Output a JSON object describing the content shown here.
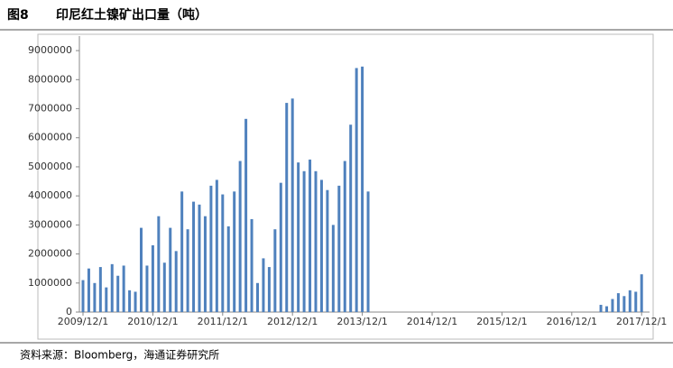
{
  "chart_data": {
    "type": "bar",
    "figure_label": "图8",
    "title": "印尼红土镍矿出口量（吨）",
    "source": "资料来源：Bloomberg，海通证券研究所",
    "categories": [
      "2009/12/1",
      null,
      null,
      null,
      null,
      null,
      null,
      null,
      null,
      null,
      null,
      null,
      "2010/12/1",
      null,
      null,
      null,
      null,
      null,
      null,
      null,
      null,
      null,
      null,
      null,
      "2011/12/1",
      null,
      null,
      null,
      null,
      null,
      null,
      null,
      null,
      null,
      null,
      null,
      "2012/12/1",
      null,
      null,
      null,
      null,
      null,
      null,
      null,
      null,
      null,
      null,
      null,
      "2013/12/1",
      null,
      null,
      null,
      null,
      null,
      null,
      null,
      null,
      null,
      null,
      null,
      "2014/12/1",
      null,
      null,
      null,
      null,
      null,
      null,
      null,
      null,
      null,
      null,
      null,
      "2015/12/1",
      null,
      null,
      null,
      null,
      null,
      null,
      null,
      null,
      null,
      null,
      null,
      "2016/12/1",
      null,
      null,
      null,
      null,
      null,
      null,
      null,
      null,
      null,
      null,
      null,
      "2017/12/1"
    ],
    "values": [
      1100000,
      1500000,
      1000000,
      1550000,
      850000,
      1650000,
      1250000,
      1600000,
      750000,
      700000,
      2900000,
      1600000,
      2300000,
      3300000,
      1700000,
      2900000,
      2100000,
      4150000,
      2850000,
      3800000,
      3700000,
      3300000,
      4350000,
      4550000,
      4050000,
      2950000,
      4150000,
      5200000,
      6650000,
      3200000,
      1000000,
      1850000,
      1550000,
      2850000,
      4450000,
      7200000,
      7350000,
      5150000,
      4850000,
      5250000,
      4850000,
      4550000,
      4200000,
      3000000,
      4350000,
      5200000,
      6450000,
      8400000,
      8450000,
      4150000,
      0,
      0,
      0,
      0,
      0,
      0,
      0,
      0,
      0,
      0,
      0,
      0,
      0,
      0,
      0,
      0,
      0,
      0,
      0,
      0,
      0,
      0,
      0,
      0,
      0,
      0,
      0,
      0,
      0,
      0,
      0,
      0,
      0,
      0,
      0,
      0,
      0,
      0,
      0,
      250000,
      200000,
      450000,
      650000,
      550000,
      750000,
      700000,
      1300000
    ],
    "color": "#4f81bd",
    "ylim": [
      0,
      9500000
    ],
    "yticks": [
      0,
      1000000,
      2000000,
      3000000,
      4000000,
      5000000,
      6000000,
      7000000,
      8000000,
      9000000
    ],
    "grid": false
  }
}
